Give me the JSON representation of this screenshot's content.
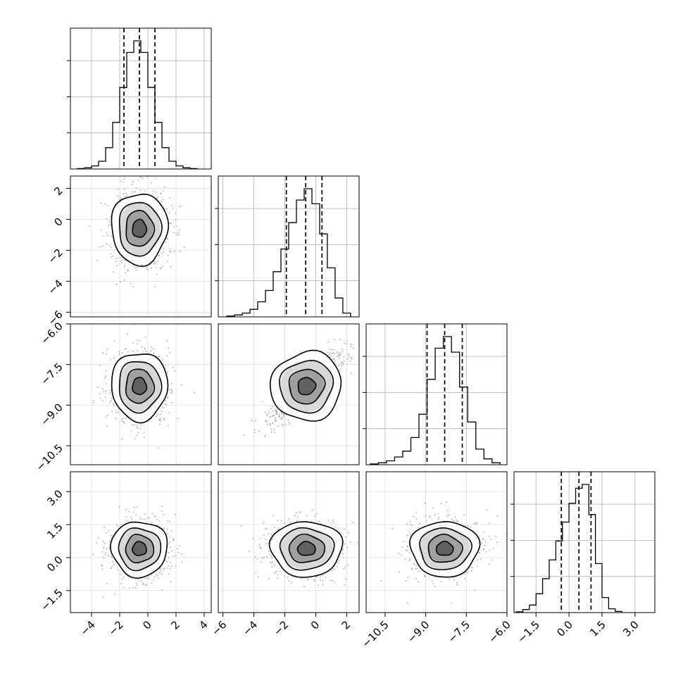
{
  "chart_data": {
    "type": "corner",
    "title": "",
    "xlabel": "",
    "ylabel": "",
    "grid": true,
    "parameters": [
      {
        "range": [
          -5.5,
          4.5
        ],
        "ticks": [
          -4,
          -2,
          0,
          2,
          4
        ],
        "tick_labels": [
          "−4",
          "−2",
          "0",
          "2",
          "4"
        ],
        "quantiles": [
          -1.7,
          -0.6,
          0.5
        ],
        "mean": -0.6,
        "sd": 0.95
      },
      {
        "range": [
          -6.3,
          2.8
        ],
        "ticks": [
          -6,
          -4,
          -2,
          0,
          2
        ],
        "tick_labels": [
          "−6",
          "−4",
          "−2",
          "0",
          "2"
        ],
        "quantiles": [
          -1.9,
          -0.65,
          0.4
        ],
        "mean": -0.6,
        "sd": 1.1
      },
      {
        "range": [
          -11.2,
          -6.0
        ],
        "ticks": [
          -10.5,
          -9.0,
          -7.5,
          -6.0
        ],
        "tick_labels": [
          "−10.5",
          "−9.0",
          "−7.5",
          "−6.0"
        ],
        "quantiles": [
          -8.95,
          -8.3,
          -7.65
        ],
        "mean": -8.3,
        "sd": 0.6
      },
      {
        "range": [
          -2.5,
          3.9
        ],
        "ticks": [
          -1.5,
          0.0,
          1.5,
          3.0
        ],
        "tick_labels": [
          "−1.5",
          "0.0",
          "1.5",
          "3.0"
        ],
        "quantiles": [
          -0.35,
          0.45,
          1.0
        ],
        "mean": 0.4,
        "sd": 0.6
      }
    ],
    "histograms": [
      {
        "parameter": 0,
        "x": [
          -4.75,
          -4.25,
          -3.75,
          -3.25,
          -2.75,
          -2.25,
          -1.75,
          -1.25,
          -0.75,
          -0.25,
          0.25,
          0.75,
          1.25,
          1.75,
          2.25,
          2.75,
          3.25
        ],
        "counts": [
          1,
          3,
          8,
          20,
          55,
          120,
          210,
          300,
          330,
          300,
          210,
          120,
          55,
          20,
          8,
          3,
          1
        ]
      },
      {
        "parameter": 1,
        "x": [
          -5.5,
          -5.0,
          -4.5,
          -4.0,
          -3.5,
          -3.0,
          -2.5,
          -2.0,
          -1.5,
          -1.0,
          -0.5,
          0.0,
          0.5,
          1.0,
          1.5,
          2.0
        ],
        "counts": [
          2,
          5,
          10,
          20,
          40,
          70,
          120,
          180,
          250,
          310,
          340,
          300,
          220,
          130,
          50,
          10
        ]
      },
      {
        "parameter": 2,
        "x": [
          -10.9,
          -10.6,
          -10.3,
          -10.0,
          -9.7,
          -9.4,
          -9.1,
          -8.8,
          -8.5,
          -8.2,
          -7.9,
          -7.6,
          -7.3,
          -7.0,
          -6.7,
          -6.4
        ],
        "counts": [
          2,
          5,
          10,
          20,
          35,
          70,
          130,
          220,
          300,
          330,
          290,
          200,
          110,
          40,
          15,
          5
        ]
      },
      {
        "parameter": 3,
        "x": [
          -2.25,
          -1.95,
          -1.65,
          -1.35,
          -1.05,
          -0.75,
          -0.45,
          -0.15,
          0.15,
          0.45,
          0.75,
          1.05,
          1.35,
          1.65,
          1.95,
          2.25
        ],
        "counts": [
          2,
          8,
          20,
          50,
          90,
          140,
          190,
          240,
          290,
          330,
          340,
          260,
          130,
          40,
          10,
          3
        ]
      }
    ],
    "panels_2d": [
      {
        "x_param": 0,
        "y_param": 1,
        "center": [
          -0.6,
          -0.6
        ],
        "radii_1sigma": [
          0.95,
          1.1
        ],
        "tilt_deg": 0
      },
      {
        "x_param": 0,
        "y_param": 2,
        "center": [
          -0.6,
          -8.3
        ],
        "radii_1sigma": [
          0.95,
          0.6
        ],
        "tilt_deg": 0
      },
      {
        "x_param": 1,
        "y_param": 2,
        "center": [
          -0.6,
          -8.3
        ],
        "radii_1sigma": [
          1.1,
          0.6
        ],
        "tilt_deg": 30
      },
      {
        "x_param": 0,
        "y_param": 3,
        "center": [
          -0.6,
          0.4
        ],
        "radii_1sigma": [
          0.95,
          0.6
        ],
        "tilt_deg": 0
      },
      {
        "x_param": 1,
        "y_param": 3,
        "center": [
          -0.6,
          0.4
        ],
        "radii_1sigma": [
          1.1,
          0.6
        ],
        "tilt_deg": 0
      },
      {
        "x_param": 2,
        "y_param": 3,
        "center": [
          -8.3,
          0.4
        ],
        "radii_1sigma": [
          0.6,
          0.6
        ],
        "tilt_deg": 0
      }
    ],
    "contour_levels_sigma": [
      0.5,
      1.0,
      1.5,
      2.0
    ]
  }
}
